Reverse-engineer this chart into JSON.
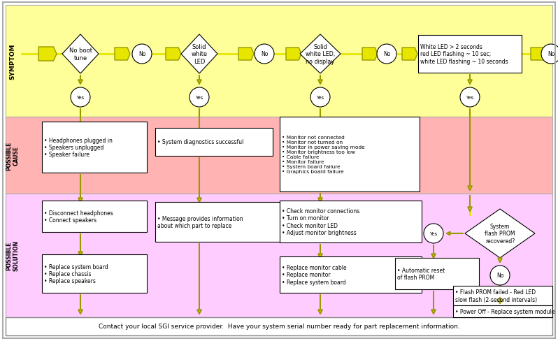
{
  "symptom_bg": "#ffff99",
  "cause_bg": "#ffb3b3",
  "solution_bg": "#ffccff",
  "bottom_bg": "#ffffff",
  "arrow_fc": "#e6e600",
  "arrow_ec": "#999900",
  "box_fc": "#ffffff",
  "box_ec": "#000000",
  "bottom_text": "Contact your local SGI service provider.  Have your system serial number ready for part replacement information.",
  "symptom_diamonds": [
    "No boot\ntune",
    "Solid\nwhite\nLED",
    "Solid\nwhite LED,\nno display"
  ],
  "symptom_box4": "White LED > 2 seconds\nred LED flashing ~ 10 sec;\nwhite LED flashing ~ 10 seconds",
  "cause_box1": "• Headphones plugged in\n• Speakers unplugged\n• Speaker failure",
  "cause_box2": "• System diagnostics successful",
  "cause_box3": "• Monitor not connected\n• Monitor not turned on\n• Monitor in power saving mode\n• Monitor brightness too low\n• Cable failure\n• Monitor failure\n• System board failure\n• Graphics board failure",
  "sol_box1": "• Disconnect headphones\n• Connect speakers",
  "sol_box2": "• Message provides information\nabout which part to replace",
  "sol_box3": "• Check monitor connections\n• Turn on monitor\n• Check monitor LED\n• Adjust monitor brightness",
  "sol_box4": "• Automatic reset\nof flash PROM",
  "sol_box5": "• Flash PROM failed - Red LED\nslow flash (2-second intervals)",
  "sol_box6": "• Power Off - Replace system module",
  "sol_box7": "• Replace system board\n• Replace chassis\n• Replace speakers",
  "sol_box8": "• Replace monitor cable\n• Replace monitor\n• Replace system board",
  "prom_text": "System\nflash PROM\nrecovered?"
}
